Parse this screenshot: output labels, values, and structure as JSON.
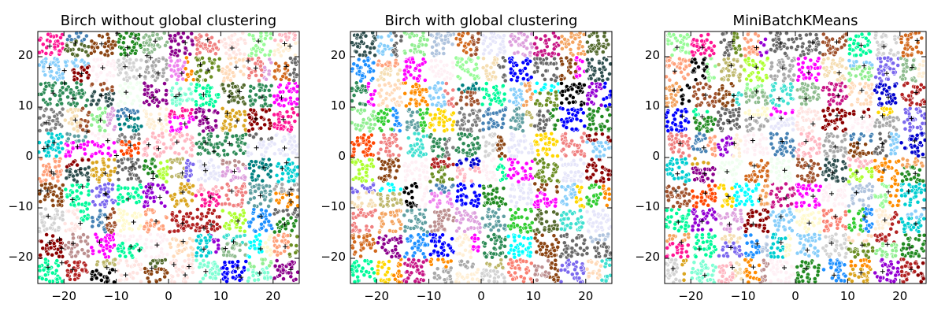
{
  "chart_data": [
    {
      "type": "scatter",
      "title": "Birch without global clustering",
      "xlabel": "",
      "ylabel": "",
      "xlim": [
        -25,
        25
      ],
      "ylim": [
        -25,
        25
      ],
      "xticks": [
        -20,
        -10,
        0,
        10,
        20
      ],
      "xtick_labels": [
        "−20",
        "−10",
        "0",
        "10",
        "20"
      ],
      "yticks": [
        -20,
        -10,
        0,
        10,
        20
      ],
      "ytick_labels": [
        "−20",
        "−10",
        "0",
        "10",
        "20"
      ],
      "grid": false,
      "legend": "none",
      "blob_centers": [
        -22.5,
        -17.5,
        -12.5,
        -7.5,
        -2.5,
        2.5,
        7.5,
        12.5,
        17.5,
        22.5
      ],
      "subclusters_per_axis": 10,
      "centroid_marker": "+",
      "seed": 11
    },
    {
      "type": "scatter",
      "title": "Birch with global clustering",
      "xlabel": "",
      "ylabel": "",
      "xlim": [
        -25,
        25
      ],
      "ylim": [
        -25,
        25
      ],
      "xticks": [
        -20,
        -10,
        0,
        10,
        20
      ],
      "xtick_labels": [
        "−20",
        "−10",
        "0",
        "10",
        "20"
      ],
      "yticks": [
        -20,
        -10,
        0,
        10,
        20
      ],
      "ytick_labels": [
        "−20",
        "−10",
        "0",
        "10",
        "20"
      ],
      "grid": false,
      "legend": "none",
      "blob_centers": [
        -22.5,
        -17.5,
        -12.5,
        -7.5,
        -2.5,
        2.5,
        7.5,
        12.5,
        17.5,
        22.5
      ],
      "subclusters_per_axis": 0,
      "centroid_marker": "",
      "seed": 23
    },
    {
      "type": "scatter",
      "title": "MiniBatchKMeans",
      "xlabel": "",
      "ylabel": "",
      "xlim": [
        -25,
        25
      ],
      "ylim": [
        -25,
        25
      ],
      "xticks": [
        -20,
        -10,
        0,
        10,
        20
      ],
      "xtick_labels": [
        "−20",
        "−10",
        "0",
        "10",
        "20"
      ],
      "yticks": [
        -20,
        -10,
        0,
        10,
        20
      ],
      "ytick_labels": [
        "−20",
        "−10",
        "0",
        "10",
        "20"
      ],
      "grid": false,
      "legend": "none",
      "blob_centers": [
        -22.5,
        -17.5,
        -12.5,
        -7.5,
        -2.5,
        2.5,
        7.5,
        12.5,
        17.5,
        22.5
      ],
      "subclusters_per_axis": 0,
      "centroid_marker": "+",
      "seed": 37
    }
  ],
  "palette": [
    "#808080",
    "#ffb6c1",
    "#ff00ff",
    "#7b68ee",
    "#2e8b57",
    "#00ffff",
    "#556b2f",
    "#fa8072",
    "#0000cd",
    "#ff8c00",
    "#adff2f",
    "#8b0000",
    "#b0c4de",
    "#ffdab9",
    "#00fa9a",
    "#d3d3d3",
    "#9400d3",
    "#fffacd",
    "#4682b4",
    "#a9a9a9",
    "#8fbc8f",
    "#ff1493",
    "#008080",
    "#6b8e23",
    "#f5deb3",
    "#d2691e",
    "#7fffd4",
    "#dda0dd",
    "#f08080",
    "#000000",
    "#ffd700",
    "#32cd32",
    "#87cefa",
    "#bc8f8f",
    "#ff4500",
    "#1e90ff",
    "#ffe4e1",
    "#98fb98",
    "#daa520",
    "#696969",
    "#8b4513",
    "#40e0d0",
    "#ee82ee",
    "#f0fff0",
    "#c71585",
    "#5f9ea0",
    "#bdb76b",
    "#0000ff",
    "#ffa07a",
    "#90ee90",
    "#fff0f5",
    "#2f4f4f",
    "#b22222",
    "#e6e6fa",
    "#a0522d",
    "#f4a460",
    "#00ced1",
    "#8b008b",
    "#ffefd5",
    "#228b22"
  ]
}
